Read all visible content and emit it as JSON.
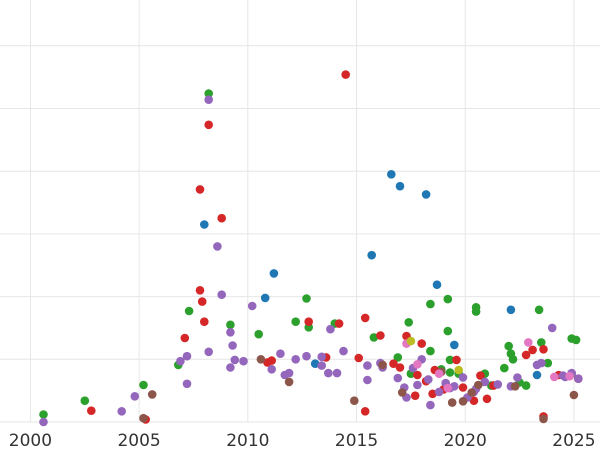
{
  "chart_data": {
    "type": "scatter",
    "title": "",
    "xlabel": "",
    "ylabel": "",
    "xlim": [
      1998.6,
      2026.2
    ],
    "ylim": [
      0,
      7
    ],
    "grid": true,
    "x_ticks": [
      2000,
      2005,
      2010,
      2015,
      2020,
      2025
    ],
    "x_tick_labels": [
      "2000",
      "2005",
      "2010",
      "2015",
      "2020",
      "2025"
    ],
    "y_ticks": [
      0,
      1,
      2,
      3,
      4,
      5,
      6
    ],
    "show_y_tick_labels": false,
    "series": [
      {
        "color": "#1f77b4",
        "points": [
          [
            2008.0,
            3.15
          ],
          [
            2011.2,
            2.37
          ],
          [
            2010.8,
            1.98
          ],
          [
            2016.6,
            3.95
          ],
          [
            2017.0,
            3.76
          ],
          [
            2018.2,
            3.63
          ],
          [
            2015.7,
            2.66
          ],
          [
            2018.7,
            2.19
          ],
          [
            2019.5,
            1.23
          ],
          [
            2022.1,
            1.79
          ],
          [
            2013.1,
            0.93
          ],
          [
            2023.3,
            0.75
          ]
        ]
      },
      {
        "color": "#2ca02c",
        "points": [
          [
            2000.6,
            0.12
          ],
          [
            2002.5,
            0.34
          ],
          [
            2005.2,
            0.59
          ],
          [
            2006.8,
            0.91
          ],
          [
            2007.3,
            1.77
          ],
          [
            2008.2,
            5.24
          ],
          [
            2009.2,
            1.55
          ],
          [
            2010.5,
            1.4
          ],
          [
            2012.2,
            1.6
          ],
          [
            2012.7,
            1.97
          ],
          [
            2012.8,
            1.51
          ],
          [
            2014.0,
            1.57
          ],
          [
            2015.8,
            1.35
          ],
          [
            2016.9,
            1.03
          ],
          [
            2017.4,
            1.59
          ],
          [
            2017.5,
            0.77
          ],
          [
            2018.4,
            1.88
          ],
          [
            2018.4,
            1.13
          ],
          [
            2018.9,
            0.84
          ],
          [
            2019.2,
            1.96
          ],
          [
            2019.3,
            0.99
          ],
          [
            2019.3,
            0.79
          ],
          [
            2019.2,
            1.45
          ],
          [
            2019.7,
            0.77
          ],
          [
            2020.5,
            1.83
          ],
          [
            2020.5,
            1.76
          ],
          [
            2020.9,
            0.77
          ],
          [
            2021.2,
            0.58
          ],
          [
            2021.8,
            0.86
          ],
          [
            2022.0,
            1.21
          ],
          [
            2022.1,
            1.09
          ],
          [
            2022.2,
            1.0
          ],
          [
            2022.5,
            0.63
          ],
          [
            2022.8,
            0.58
          ],
          [
            2023.4,
            1.79
          ],
          [
            2023.5,
            1.27
          ],
          [
            2023.8,
            0.94
          ],
          [
            2024.9,
            1.33
          ],
          [
            2025.1,
            1.31
          ],
          [
            2024.9,
            0.77
          ]
        ]
      },
      {
        "color": "#d62728",
        "points": [
          [
            2002.8,
            0.18
          ],
          [
            2005.3,
            0.04
          ],
          [
            2007.1,
            1.34
          ],
          [
            2007.8,
            3.71
          ],
          [
            2007.8,
            2.1
          ],
          [
            2008.0,
            1.6
          ],
          [
            2007.9,
            1.92
          ],
          [
            2008.2,
            4.74
          ],
          [
            2008.8,
            3.25
          ],
          [
            2011.1,
            0.98
          ],
          [
            2010.9,
            0.95
          ],
          [
            2012.8,
            1.6
          ],
          [
            2013.6,
            1.03
          ],
          [
            2014.2,
            1.57
          ],
          [
            2014.5,
            5.54
          ],
          [
            2015.1,
            1.02
          ],
          [
            2015.4,
            1.66
          ],
          [
            2015.4,
            0.17
          ],
          [
            2016.1,
            1.38
          ],
          [
            2016.7,
            0.93
          ],
          [
            2017.0,
            0.87
          ],
          [
            2017.3,
            1.37
          ],
          [
            2017.7,
            0.42
          ],
          [
            2017.8,
            0.75
          ],
          [
            2018.0,
            1.25
          ],
          [
            2018.2,
            0.65
          ],
          [
            2018.5,
            0.45
          ],
          [
            2018.6,
            0.83
          ],
          [
            2019.0,
            0.52
          ],
          [
            2019.6,
            0.99
          ],
          [
            2019.9,
            0.55
          ],
          [
            2020.4,
            0.34
          ],
          [
            2020.7,
            0.74
          ],
          [
            2021.0,
            0.37
          ],
          [
            2021.3,
            0.58
          ],
          [
            2022.8,
            1.07
          ],
          [
            2023.1,
            1.15
          ],
          [
            2023.6,
            1.16
          ],
          [
            2023.6,
            0.09
          ],
          [
            2024.3,
            0.75
          ],
          [
            2025.2,
            0.69
          ]
        ]
      },
      {
        "color": "#9467bd",
        "points": [
          [
            2000.6,
            0.0
          ],
          [
            2004.2,
            0.17
          ],
          [
            2004.8,
            0.41
          ],
          [
            2006.9,
            0.97
          ],
          [
            2007.2,
            1.05
          ],
          [
            2007.2,
            0.61
          ],
          [
            2008.2,
            5.14
          ],
          [
            2008.6,
            2.8
          ],
          [
            2008.8,
            2.03
          ],
          [
            2008.2,
            1.12
          ],
          [
            2009.2,
            1.43
          ],
          [
            2009.3,
            1.22
          ],
          [
            2009.2,
            0.87
          ],
          [
            2009.4,
            0.99
          ],
          [
            2009.8,
            0.97
          ],
          [
            2010.2,
            1.85
          ],
          [
            2011.5,
            1.09
          ],
          [
            2011.1,
            0.84
          ],
          [
            2011.7,
            0.75
          ],
          [
            2011.9,
            0.78
          ],
          [
            2012.2,
            1.0
          ],
          [
            2012.7,
            1.05
          ],
          [
            2013.4,
            1.04
          ],
          [
            2013.4,
            0.9
          ],
          [
            2013.8,
            1.48
          ],
          [
            2013.7,
            0.78
          ],
          [
            2014.1,
            0.78
          ],
          [
            2014.4,
            1.13
          ],
          [
            2015.5,
            0.9
          ],
          [
            2015.5,
            0.67
          ],
          [
            2016.1,
            0.94
          ],
          [
            2016.2,
            0.87
          ],
          [
            2016.9,
            0.7
          ],
          [
            2017.2,
            0.55
          ],
          [
            2017.3,
            0.39
          ],
          [
            2017.6,
            0.86
          ],
          [
            2017.8,
            0.59
          ],
          [
            2018.0,
            1.0
          ],
          [
            2018.3,
            0.68
          ],
          [
            2018.4,
            0.27
          ],
          [
            2018.8,
            0.48
          ],
          [
            2019.1,
            0.62
          ],
          [
            2019.3,
            0.54
          ],
          [
            2019.5,
            0.57
          ],
          [
            2019.9,
            0.71
          ],
          [
            2020.1,
            0.39
          ],
          [
            2020.4,
            0.48
          ],
          [
            2020.5,
            0.53
          ],
          [
            2020.9,
            0.64
          ],
          [
            2021.5,
            0.6
          ],
          [
            2022.1,
            0.57
          ],
          [
            2022.4,
            0.71
          ],
          [
            2023.3,
            0.91
          ],
          [
            2023.5,
            0.94
          ],
          [
            2024.0,
            1.5
          ],
          [
            2024.5,
            0.74
          ],
          [
            2024.6,
            0.72
          ],
          [
            2024.9,
            0.78
          ],
          [
            2025.2,
            0.69
          ]
        ]
      },
      {
        "color": "#8c564b",
        "points": [
          [
            2005.2,
            0.06
          ],
          [
            2005.6,
            0.44
          ],
          [
            2010.6,
            1.0
          ],
          [
            2011.9,
            0.64
          ],
          [
            2014.9,
            0.34
          ],
          [
            2016.2,
            0.91
          ],
          [
            2017.1,
            0.47
          ],
          [
            2018.9,
            0.8
          ],
          [
            2019.4,
            0.31
          ],
          [
            2019.9,
            0.33
          ],
          [
            2020.3,
            0.47
          ],
          [
            2020.6,
            0.59
          ],
          [
            2022.3,
            0.57
          ],
          [
            2023.6,
            0.05
          ],
          [
            2025.0,
            0.43
          ]
        ]
      },
      {
        "color": "#e377c2",
        "points": [
          [
            2017.3,
            1.25
          ],
          [
            2017.8,
            0.92
          ],
          [
            2018.8,
            0.77
          ],
          [
            2019.2,
            0.54
          ],
          [
            2022.9,
            1.27
          ],
          [
            2024.1,
            0.72
          ],
          [
            2024.8,
            0.73
          ]
        ]
      },
      {
        "color": "#bcbd22",
        "points": [
          [
            2017.5,
            1.29
          ],
          [
            2019.7,
            0.83
          ]
        ]
      }
    ]
  }
}
